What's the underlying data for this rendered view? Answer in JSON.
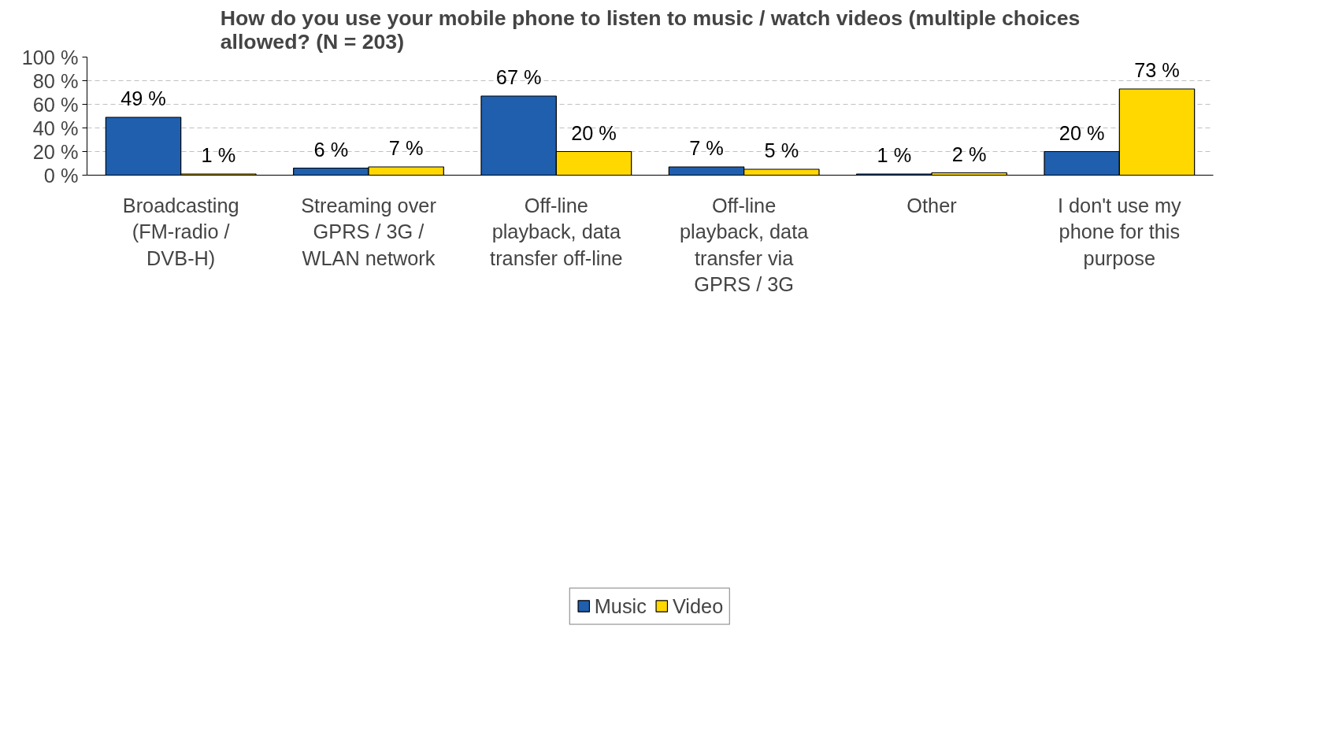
{
  "chart_data": {
    "type": "bar",
    "title": "How do you use your mobile phone to listen to music / watch videos (multiple choices\nallowed? (N = 203)",
    "categories": [
      "Broadcasting\n(FM-radio /\nDVB-H)",
      "Streaming over\nGPRS / 3G /\nWLAN network",
      "Off-line\nplayback, data\ntransfer off-line",
      "Off-line\nplayback, data\ntransfer via\nGPRS / 3G",
      "Other",
      "I don't use my\nphone for this\npurpose"
    ],
    "series": [
      {
        "name": "Music",
        "color": "#1f5fae",
        "values": [
          49,
          6,
          67,
          7,
          1,
          20
        ],
        "value_labels": [
          "49 %",
          "6 %",
          "67 %",
          "7 %",
          "1 %",
          "20 %"
        ]
      },
      {
        "name": "Video",
        "color": "#ffd800",
        "values": [
          1,
          7,
          20,
          5,
          2,
          73
        ],
        "value_labels": [
          "1 %",
          "7 %",
          "20 %",
          "5 %",
          "2 %",
          "73 %"
        ]
      }
    ],
    "ylim": [
      0,
      100
    ],
    "yticks": [
      {
        "value": 0,
        "label": "0 %"
      },
      {
        "value": 20,
        "label": "20 %"
      },
      {
        "value": 40,
        "label": "40 %"
      },
      {
        "value": 60,
        "label": "60 %"
      },
      {
        "value": 80,
        "label": "80 %"
      },
      {
        "value": 100,
        "label": "100 %"
      }
    ],
    "grid": "y",
    "legend": "bottom"
  }
}
